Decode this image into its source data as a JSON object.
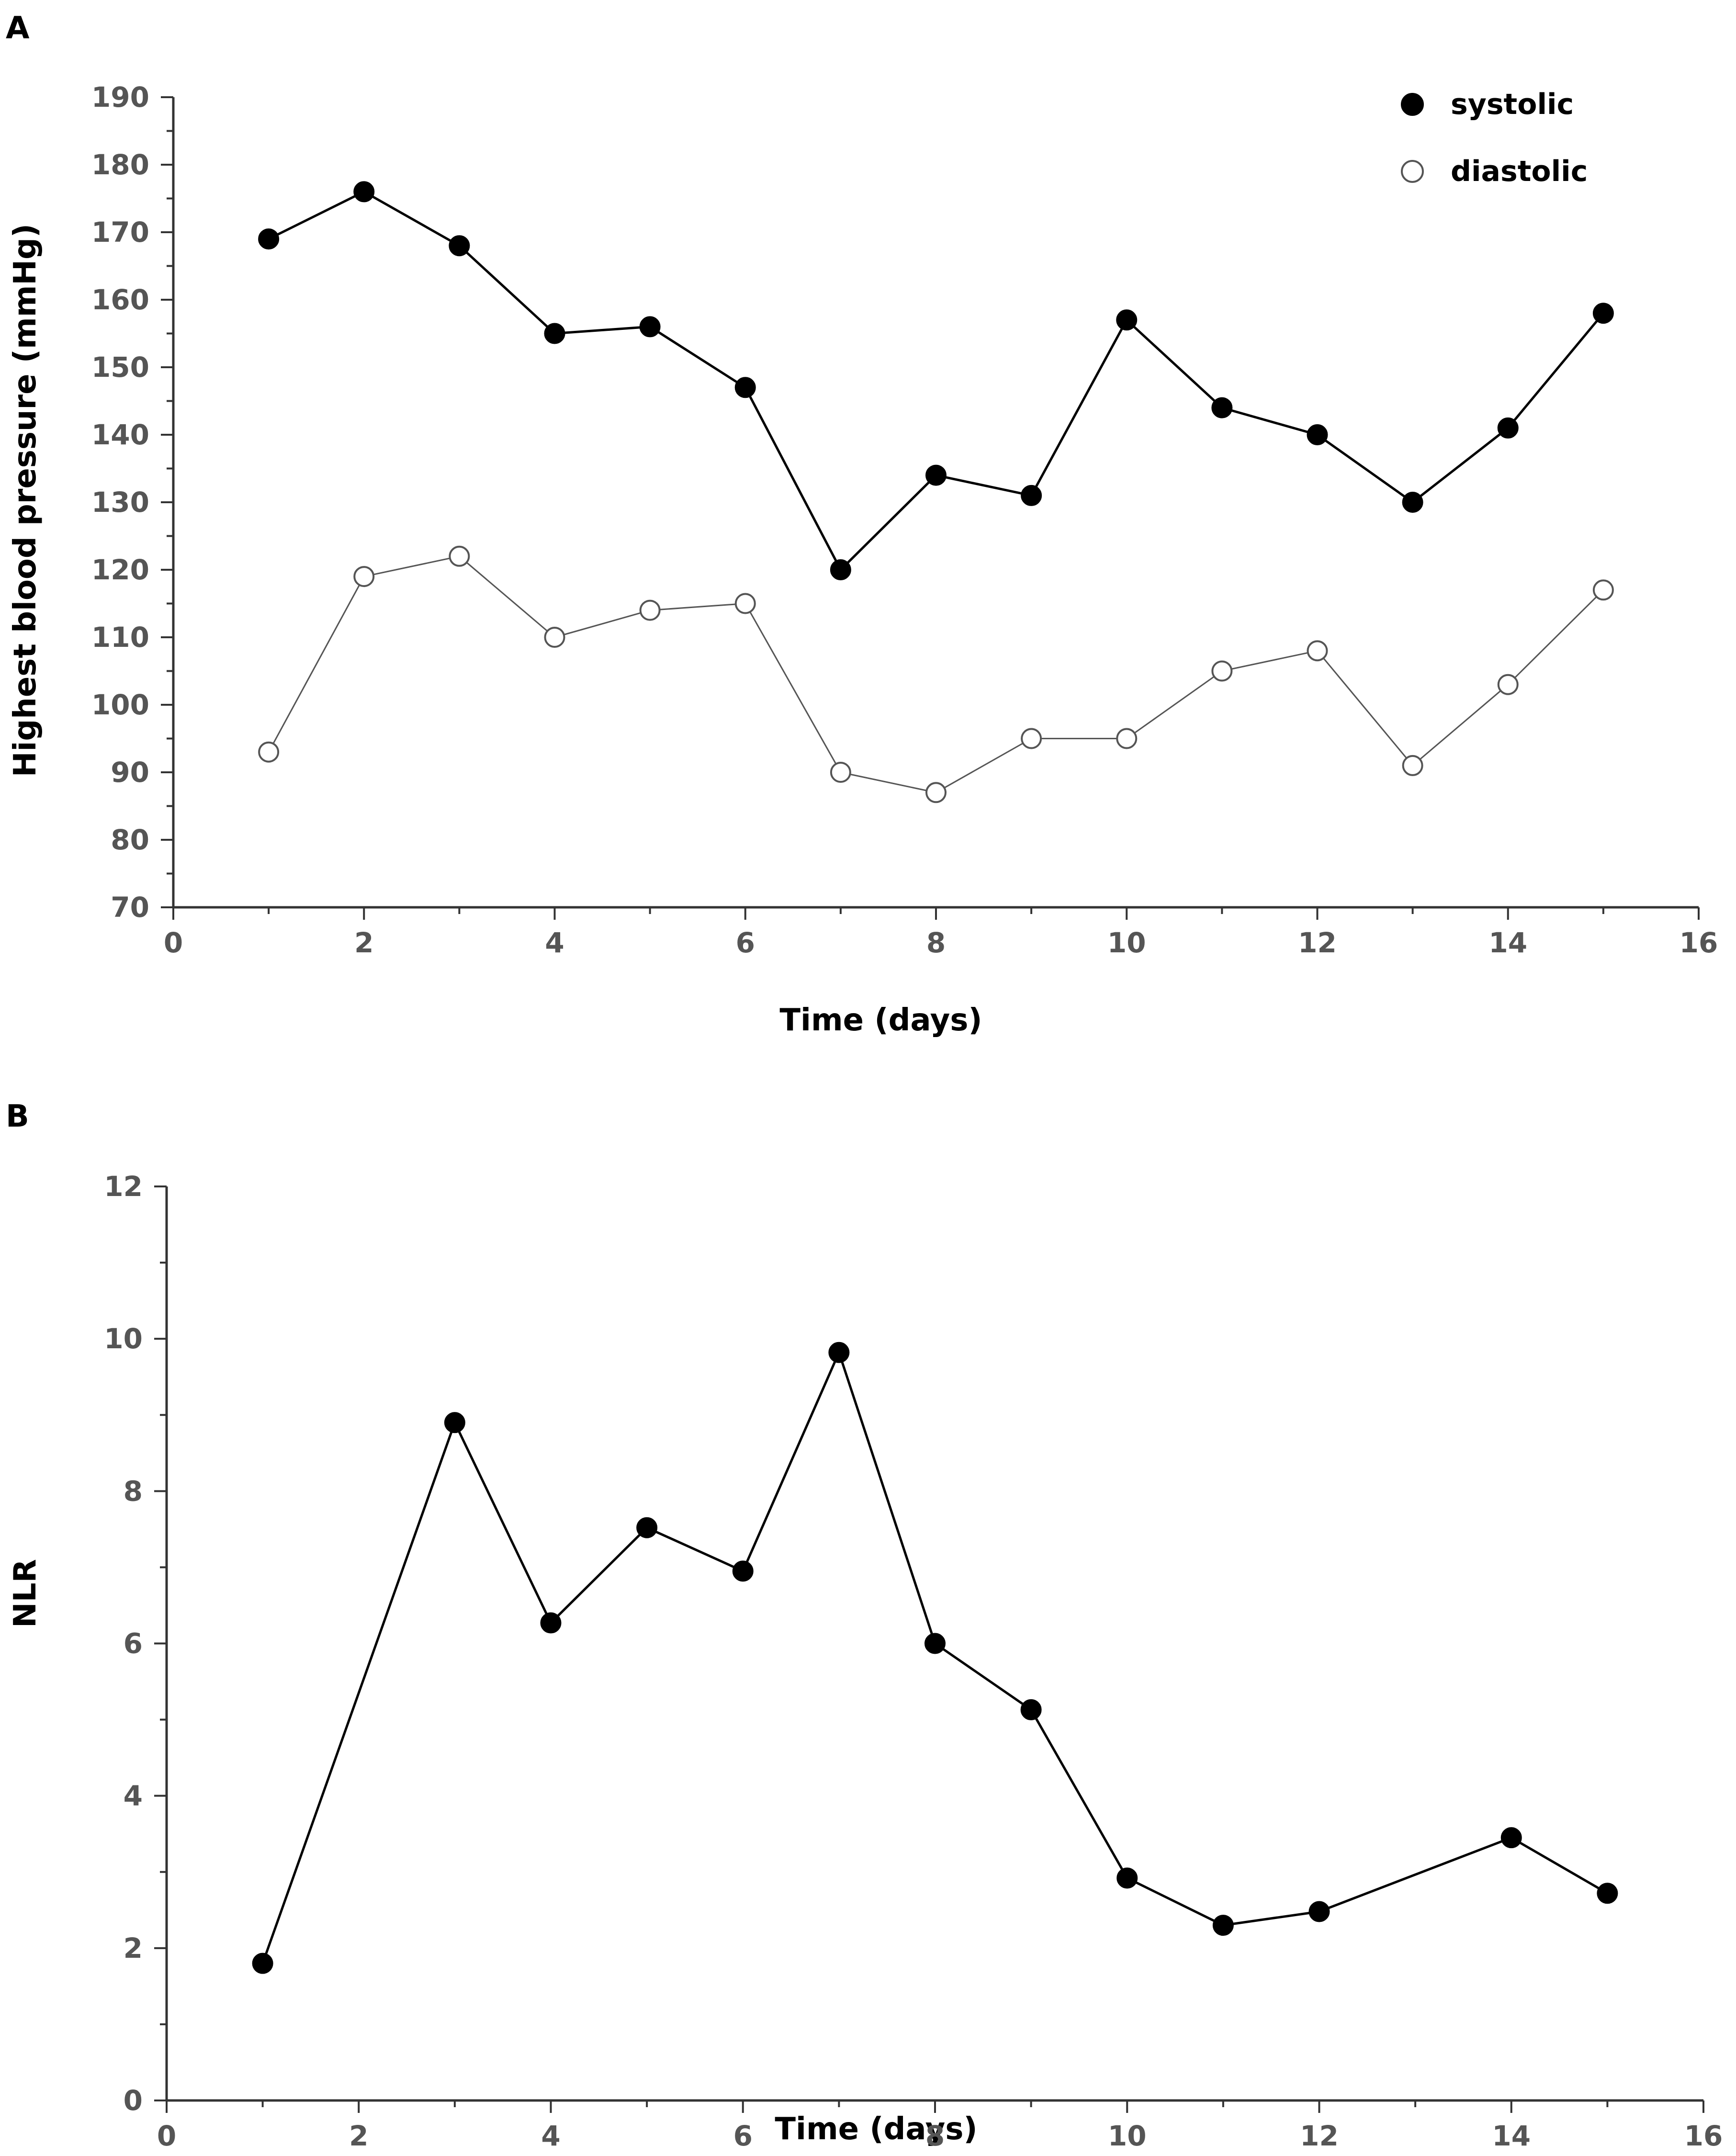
{
  "chart_data": [
    {
      "panel": "A",
      "type": "line",
      "title": "",
      "xlabel": "Time (days)",
      "ylabel": "Highest blood pressure (mmHg)",
      "xlim": [
        0,
        16
      ],
      "ylim": [
        70,
        190
      ],
      "xticks": [
        0,
        2,
        4,
        6,
        8,
        10,
        12,
        14,
        16
      ],
      "yticks": [
        70,
        80,
        90,
        100,
        110,
        120,
        130,
        140,
        150,
        160,
        170,
        180,
        190
      ],
      "grid": false,
      "legend_position": "top-right",
      "series": [
        {
          "name": "systolic",
          "marker": "filled-circle",
          "color": "#000000",
          "x": [
            1,
            2,
            3,
            4,
            5,
            6,
            7,
            8,
            9,
            10,
            11,
            12,
            13,
            14,
            15
          ],
          "values": [
            169,
            176,
            168,
            155,
            156,
            147,
            120,
            134,
            131,
            157,
            144,
            140,
            130,
            141,
            158
          ]
        },
        {
          "name": "diastolic",
          "marker": "open-circle",
          "color": "#555555",
          "x": [
            1,
            2,
            3,
            4,
            5,
            6,
            7,
            8,
            9,
            10,
            11,
            12,
            13,
            14,
            15
          ],
          "values": [
            93,
            119,
            122,
            110,
            114,
            115,
            90,
            87,
            95,
            95,
            105,
            108,
            91,
            103,
            117
          ]
        }
      ]
    },
    {
      "panel": "B",
      "type": "line",
      "title": "",
      "xlabel": "Time (days)",
      "ylabel": "NLR",
      "xlim": [
        0,
        16
      ],
      "ylim": [
        0,
        12
      ],
      "xticks": [
        0,
        2,
        4,
        6,
        8,
        10,
        12,
        14,
        16
      ],
      "yticks": [
        0,
        2,
        4,
        6,
        8,
        10,
        12
      ],
      "grid": false,
      "series": [
        {
          "name": "NLR",
          "marker": "filled-circle",
          "color": "#000000",
          "x": [
            1,
            3,
            4,
            5,
            6,
            7,
            8,
            9,
            10,
            11,
            12,
            14,
            15
          ],
          "values": [
            1.8,
            8.9,
            6.27,
            7.52,
            6.95,
            9.82,
            6.0,
            5.13,
            2.92,
            2.3,
            2.48,
            3.45,
            2.72
          ]
        }
      ]
    }
  ]
}
